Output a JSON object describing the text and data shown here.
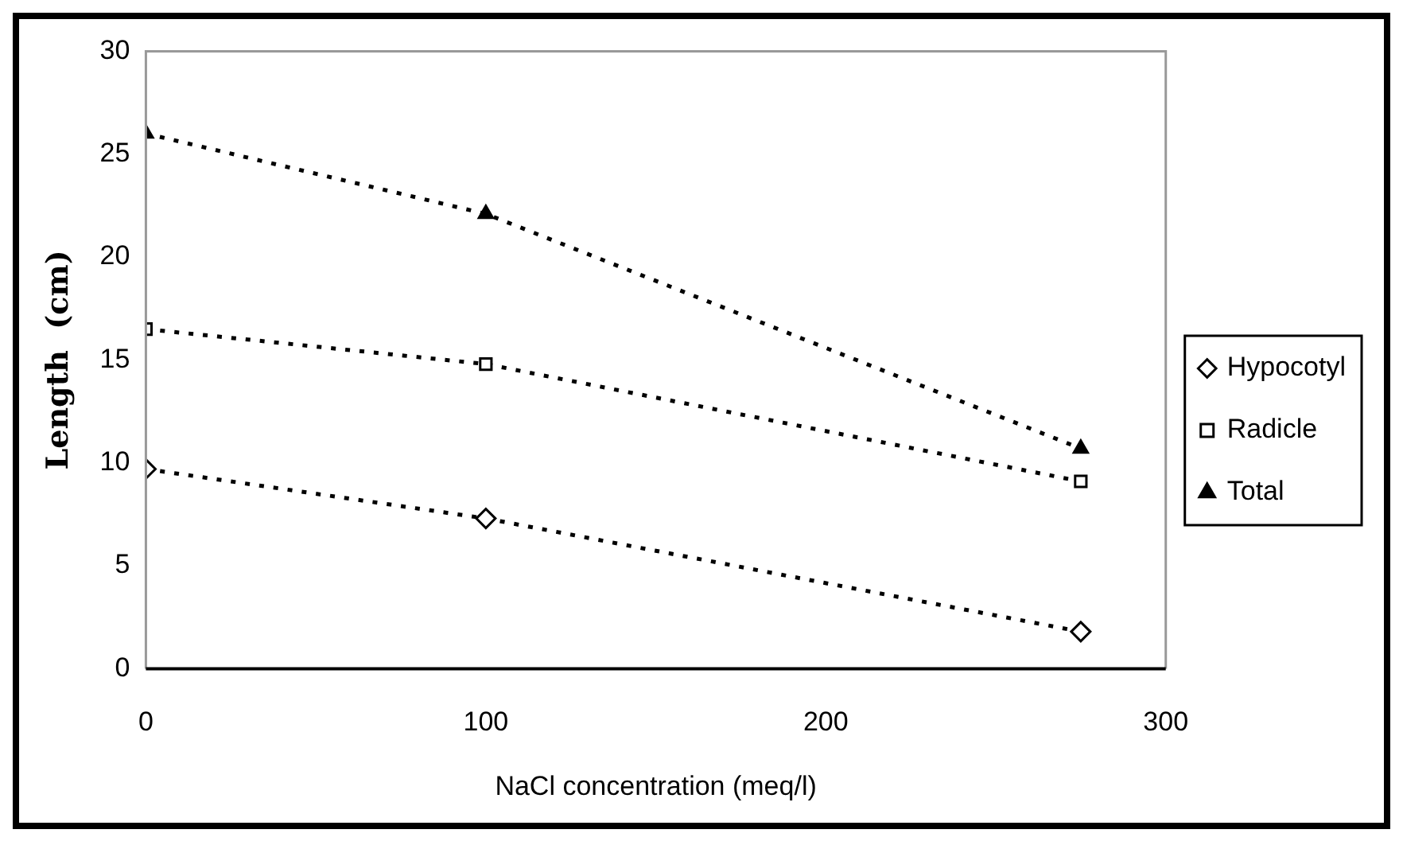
{
  "chart_data": {
    "type": "line",
    "xlabel": "NaCl concentration (meq/l)",
    "ylabel": "Length  (cm)",
    "x": [
      0,
      100,
      275
    ],
    "series": [
      {
        "name": "Hypocotyl",
        "color": "#000000",
        "values": [
          9.7,
          7.3,
          1.8
        ],
        "marker": "diamond"
      },
      {
        "name": "Radicle",
        "color": "#000000",
        "values": [
          16.5,
          14.8,
          9.1
        ],
        "marker": "square"
      },
      {
        "name": "Total",
        "color": "#000000",
        "values": [
          26.0,
          22.1,
          10.7
        ],
        "marker": "triangle"
      }
    ],
    "xlim": [
      0,
      300
    ],
    "xticks": [
      0,
      100,
      200,
      300
    ],
    "ylim": [
      0,
      30
    ],
    "yticks": [
      0,
      5,
      10,
      15,
      20,
      25,
      30
    ],
    "grid": false,
    "legend": "right",
    "line_style": "dotted"
  }
}
